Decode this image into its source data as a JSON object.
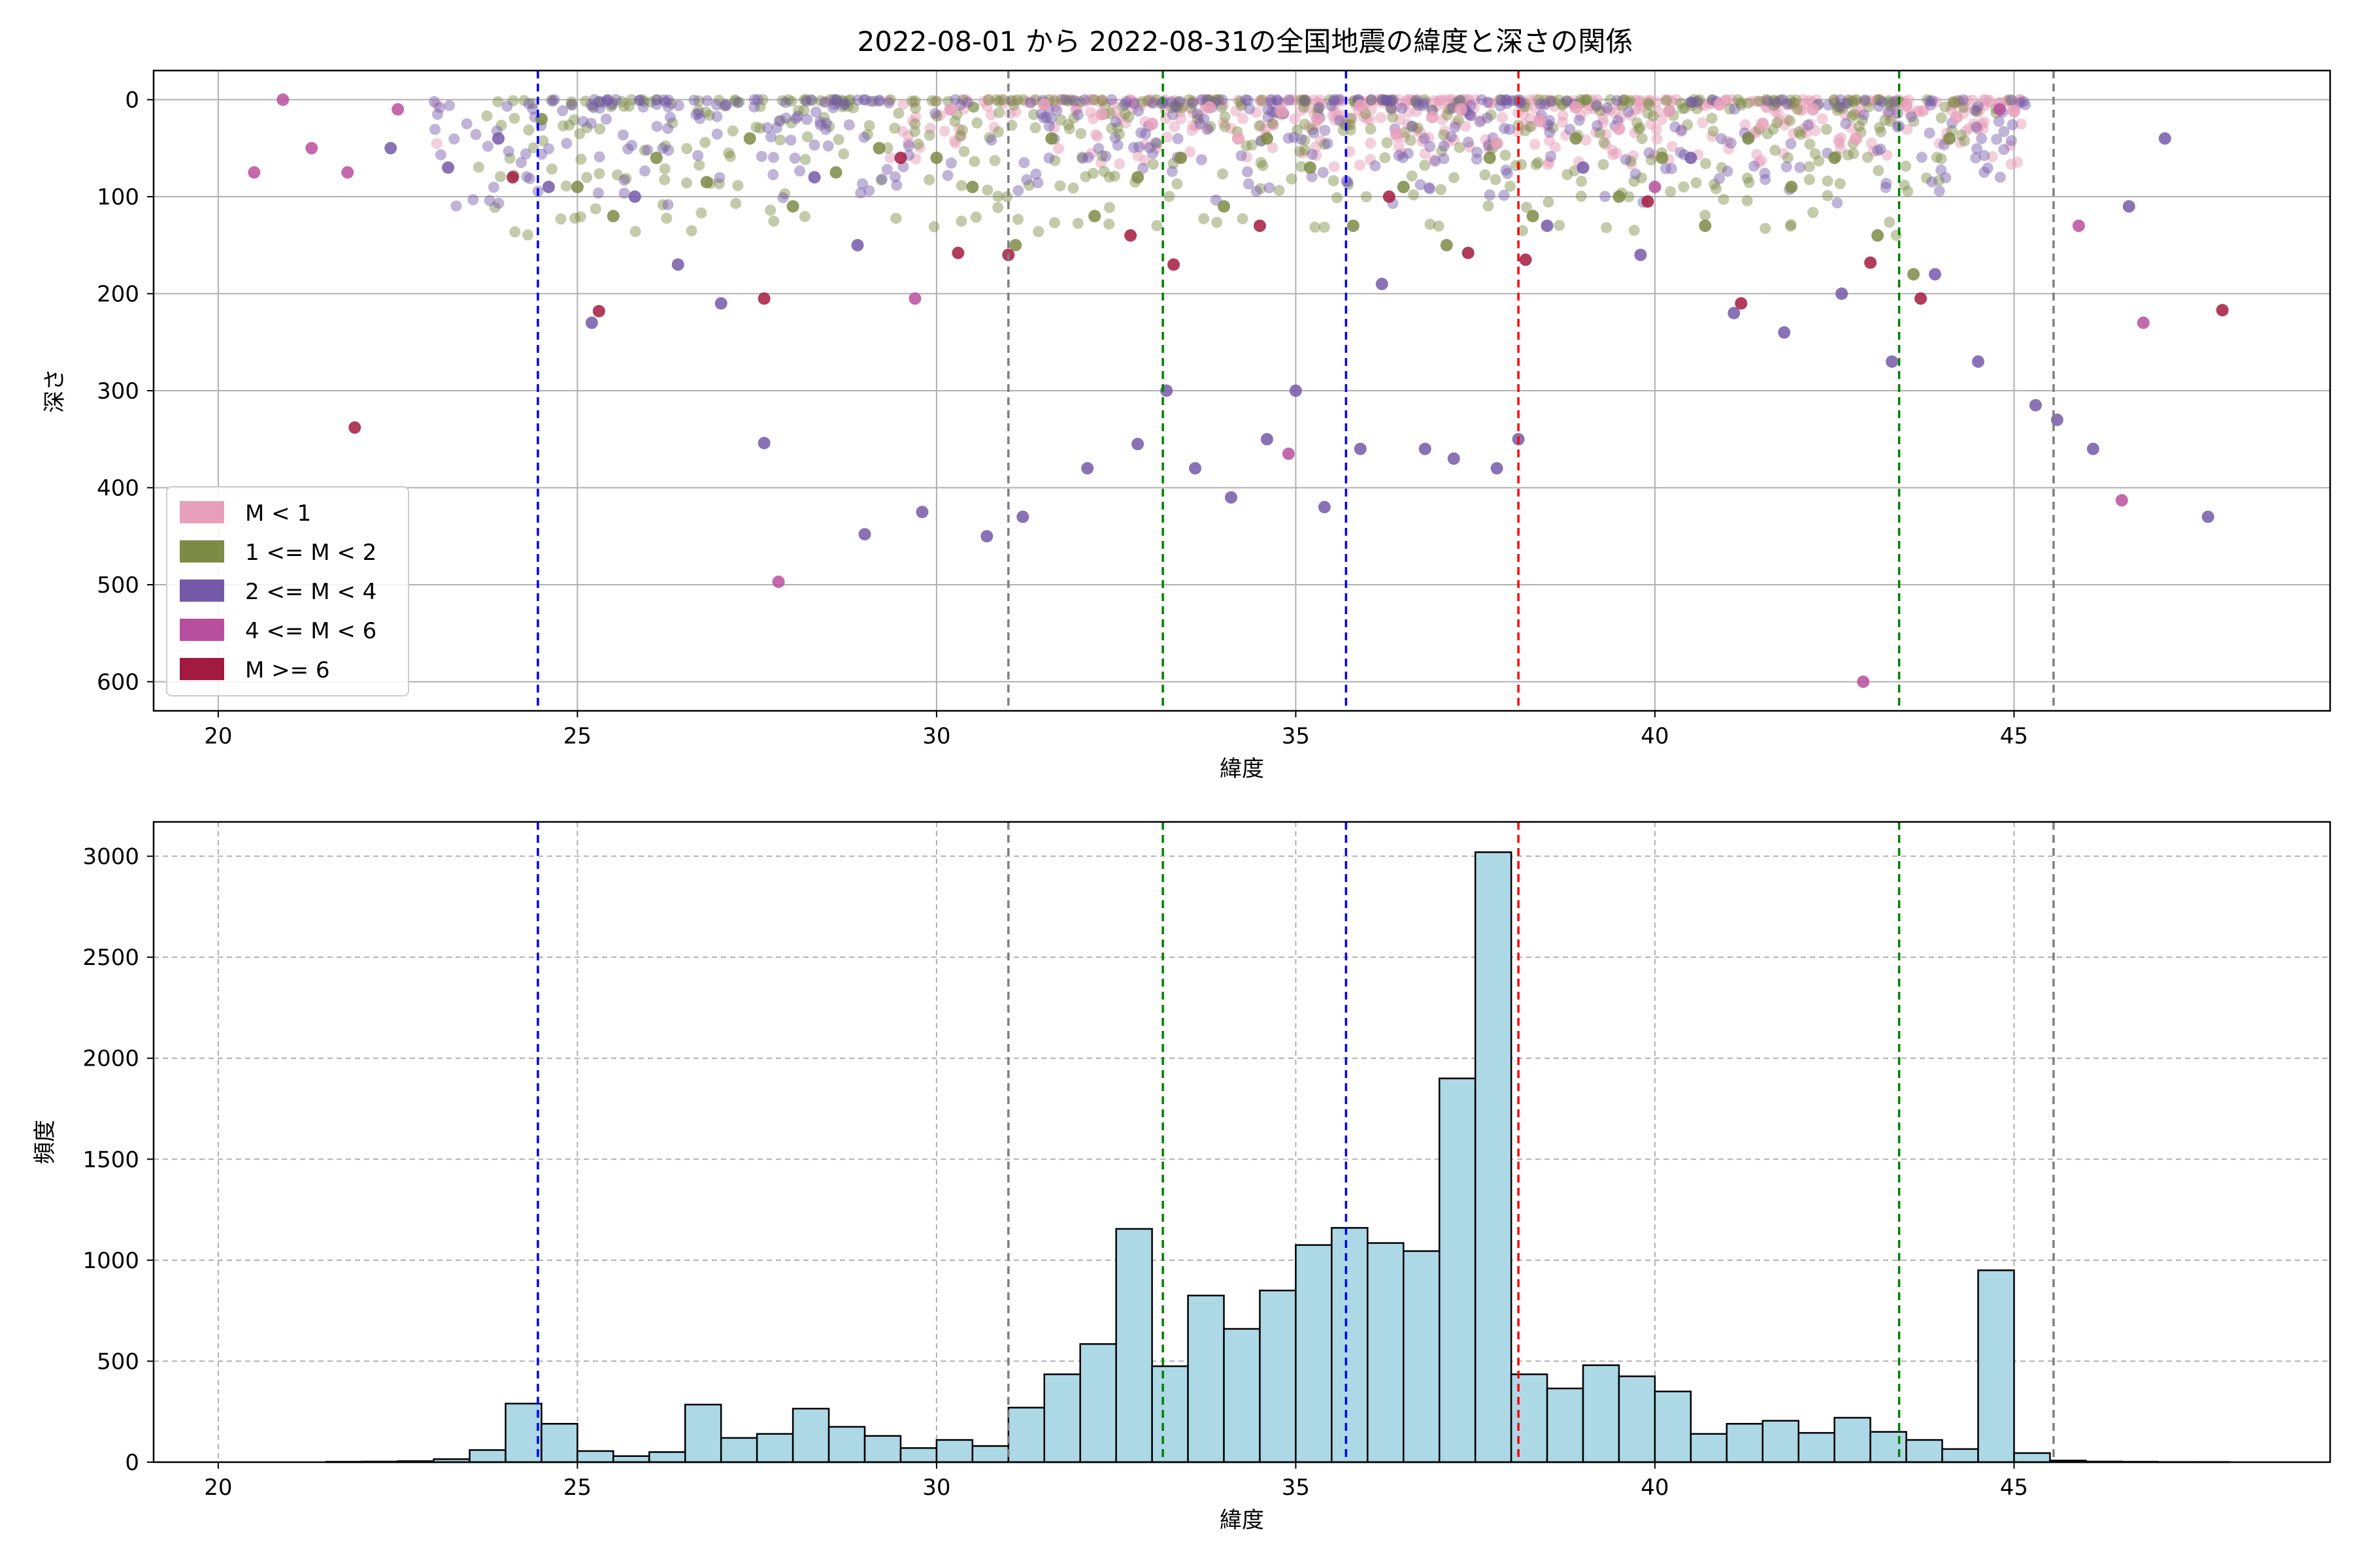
{
  "chart_data": [
    {
      "type": "scatter",
      "title": "2022-08-01 から 2022-08-31の全国地震の緯度と深さの関係",
      "xlabel": "緯度",
      "ylabel": "深さ",
      "xlim": [
        19.1,
        49.4
      ],
      "ylim": [
        630,
        -30
      ],
      "y_inverted": true,
      "xticks": [
        20,
        25,
        30,
        35,
        40,
        45
      ],
      "yticks": [
        0,
        100,
        200,
        300,
        400,
        500,
        600
      ],
      "grid": true,
      "legend_position": "lower-left",
      "series": [
        {
          "name": "M < 1",
          "color": "#e8a0ba",
          "points": [
            [
              30.2,
              10
            ],
            [
              31.5,
              5
            ],
            [
              32.3,
              15
            ],
            [
              33.0,
              25
            ],
            [
              33.8,
              8
            ],
            [
              34.2,
              40
            ],
            [
              34.8,
              12
            ],
            [
              35.3,
              20
            ],
            [
              35.9,
              6
            ],
            [
              36.4,
              35
            ],
            [
              36.9,
              18
            ],
            [
              37.3,
              10
            ],
            [
              37.8,
              45
            ],
            [
              38.4,
              22
            ],
            [
              38.9,
              8
            ],
            [
              39.5,
              30
            ],
            [
              40.2,
              12
            ],
            [
              40.9,
              5
            ],
            [
              41.5,
              25
            ],
            [
              42.2,
              10
            ],
            [
              42.8,
              40
            ],
            [
              43.5,
              6
            ],
            [
              44.2,
              18
            ],
            [
              44.8,
              4
            ],
            [
              45.0,
              12
            ]
          ]
        },
        {
          "name": "1 <= M < 2",
          "color": "#7d8b45",
          "points": [
            [
              24.5,
              20
            ],
            [
              25.0,
              90
            ],
            [
              25.5,
              120
            ],
            [
              26.1,
              60
            ],
            [
              26.8,
              85
            ],
            [
              27.4,
              40
            ],
            [
              28.0,
              110
            ],
            [
              28.6,
              75
            ],
            [
              29.2,
              50
            ],
            [
              30.0,
              60
            ],
            [
              30.5,
              90
            ],
            [
              31.1,
              150
            ],
            [
              31.6,
              40
            ],
            [
              32.2,
              120
            ],
            [
              32.8,
              80
            ],
            [
              33.4,
              60
            ],
            [
              34.0,
              110
            ],
            [
              34.6,
              40
            ],
            [
              35.2,
              70
            ],
            [
              35.8,
              130
            ],
            [
              36.5,
              90
            ],
            [
              37.1,
              150
            ],
            [
              37.7,
              60
            ],
            [
              38.3,
              120
            ],
            [
              38.9,
              40
            ],
            [
              39.5,
              100
            ],
            [
              40.1,
              60
            ],
            [
              40.7,
              130
            ],
            [
              41.3,
              40
            ],
            [
              41.9,
              90
            ],
            [
              42.5,
              60
            ],
            [
              43.1,
              140
            ],
            [
              43.6,
              180
            ],
            [
              44.1,
              40
            ]
          ]
        },
        {
          "name": "2 <= M < 4",
          "color": "#7459a8",
          "points": [
            [
              22.4,
              50
            ],
            [
              23.2,
              70
            ],
            [
              23.9,
              40
            ],
            [
              24.6,
              90
            ],
            [
              25.2,
              230
            ],
            [
              25.8,
              100
            ],
            [
              26.4,
              170
            ],
            [
              27.0,
              210
            ],
            [
              27.6,
              354
            ],
            [
              28.3,
              80
            ],
            [
              28.9,
              150
            ],
            [
              29.0,
              448
            ],
            [
              29.8,
              425
            ],
            [
              30.7,
              450
            ],
            [
              31.2,
              430
            ],
            [
              32.1,
              380
            ],
            [
              32.8,
              355
            ],
            [
              33.2,
              300
            ],
            [
              33.6,
              380
            ],
            [
              34.1,
              410
            ],
            [
              34.6,
              350
            ],
            [
              35.0,
              300
            ],
            [
              35.4,
              420
            ],
            [
              35.9,
              360
            ],
            [
              36.2,
              190
            ],
            [
              36.8,
              360
            ],
            [
              37.2,
              370
            ],
            [
              37.8,
              380
            ],
            [
              38.1,
              350
            ],
            [
              38.5,
              130
            ],
            [
              39.0,
              70
            ],
            [
              39.8,
              160
            ],
            [
              40.5,
              60
            ],
            [
              41.1,
              220
            ],
            [
              41.8,
              240
            ],
            [
              42.6,
              200
            ],
            [
              43.3,
              270
            ],
            [
              43.9,
              180
            ],
            [
              44.5,
              270
            ],
            [
              45.3,
              315
            ],
            [
              45.6,
              330
            ],
            [
              46.1,
              360
            ],
            [
              46.6,
              110
            ],
            [
              47.1,
              40
            ],
            [
              47.7,
              430
            ]
          ]
        },
        {
          "name": "4 <= M < 6",
          "color": "#b84f9e",
          "points": [
            [
              20.5,
              75
            ],
            [
              20.9,
              0
            ],
            [
              21.3,
              50
            ],
            [
              21.8,
              75
            ],
            [
              22.5,
              10
            ],
            [
              27.8,
              497
            ],
            [
              29.7,
              205
            ],
            [
              34.9,
              365
            ],
            [
              40.0,
              90
            ],
            [
              42.9,
              600
            ],
            [
              44.8,
              10
            ],
            [
              45.9,
              130
            ],
            [
              46.5,
              413
            ],
            [
              46.8,
              230
            ]
          ]
        },
        {
          "name": "M >= 6",
          "color": "#a31a40",
          "points": [
            [
              21.9,
              338
            ],
            [
              24.1,
              80
            ],
            [
              25.3,
              218
            ],
            [
              27.6,
              205
            ],
            [
              29.5,
              60
            ],
            [
              30.3,
              158
            ],
            [
              31.0,
              160
            ],
            [
              32.7,
              140
            ],
            [
              33.3,
              170
            ],
            [
              34.5,
              130
            ],
            [
              36.3,
              100
            ],
            [
              37.4,
              158
            ],
            [
              38.2,
              165
            ],
            [
              39.9,
              105
            ],
            [
              41.2,
              210
            ],
            [
              43.0,
              168
            ],
            [
              43.7,
              205
            ],
            [
              47.9,
              217
            ]
          ]
        }
      ],
      "reference_lines": [
        {
          "x": 24.45,
          "color": "#0000ff"
        },
        {
          "x": 31.0,
          "color": "#808080"
        },
        {
          "x": 33.15,
          "color": "#008000"
        },
        {
          "x": 35.7,
          "color": "#0000ff"
        },
        {
          "x": 38.1,
          "color": "#ff0000"
        },
        {
          "x": 43.4,
          "color": "#008000"
        },
        {
          "x": 45.55,
          "color": "#808080"
        }
      ]
    },
    {
      "type": "bar",
      "title": "",
      "xlabel": "緯度",
      "ylabel": "頻度",
      "xlim": [
        19.1,
        49.4
      ],
      "ylim": [
        0,
        3170
      ],
      "xticks": [
        20,
        25,
        30,
        35,
        40,
        45
      ],
      "yticks": [
        0,
        500,
        1000,
        1500,
        2000,
        2500,
        3000
      ],
      "grid": true,
      "bar_color": "#add8e6",
      "bin_width": 0.5,
      "bins": [
        [
          20.0,
          0
        ],
        [
          20.5,
          0
        ],
        [
          21.0,
          0
        ],
        [
          21.5,
          2
        ],
        [
          22.0,
          3
        ],
        [
          22.5,
          5
        ],
        [
          23.0,
          15
        ],
        [
          23.5,
          60
        ],
        [
          24.0,
          290
        ],
        [
          24.5,
          190
        ],
        [
          25.0,
          55
        ],
        [
          25.5,
          30
        ],
        [
          26.0,
          50
        ],
        [
          26.5,
          285
        ],
        [
          27.0,
          120
        ],
        [
          27.5,
          140
        ],
        [
          28.0,
          265
        ],
        [
          28.5,
          175
        ],
        [
          29.0,
          130
        ],
        [
          29.5,
          70
        ],
        [
          30.0,
          110
        ],
        [
          30.5,
          80
        ],
        [
          31.0,
          270
        ],
        [
          31.5,
          435
        ],
        [
          32.0,
          585
        ],
        [
          32.5,
          1155
        ],
        [
          33.0,
          475
        ],
        [
          33.5,
          825
        ],
        [
          34.0,
          660
        ],
        [
          34.5,
          850
        ],
        [
          35.0,
          1075
        ],
        [
          35.5,
          1160
        ],
        [
          36.0,
          1085
        ],
        [
          36.5,
          1045
        ],
        [
          37.0,
          1900
        ],
        [
          37.5,
          3020
        ],
        [
          38.0,
          435
        ],
        [
          38.5,
          365
        ],
        [
          39.0,
          480
        ],
        [
          39.5,
          425
        ],
        [
          40.0,
          350
        ],
        [
          40.5,
          140
        ],
        [
          41.0,
          190
        ],
        [
          41.5,
          205
        ],
        [
          42.0,
          145
        ],
        [
          42.5,
          220
        ],
        [
          43.0,
          150
        ],
        [
          43.5,
          110
        ],
        [
          44.0,
          65
        ],
        [
          44.5,
          950
        ],
        [
          45.0,
          45
        ],
        [
          45.5,
          8
        ],
        [
          46.0,
          3
        ],
        [
          46.5,
          2
        ],
        [
          47.0,
          1
        ],
        [
          47.5,
          1
        ]
      ],
      "reference_lines": [
        {
          "x": 24.45,
          "color": "#0000ff"
        },
        {
          "x": 31.0,
          "color": "#808080"
        },
        {
          "x": 33.15,
          "color": "#008000"
        },
        {
          "x": 35.7,
          "color": "#0000ff"
        },
        {
          "x": 38.1,
          "color": "#ff0000"
        },
        {
          "x": 43.4,
          "color": "#008000"
        },
        {
          "x": 45.55,
          "color": "#808080"
        }
      ]
    }
  ]
}
